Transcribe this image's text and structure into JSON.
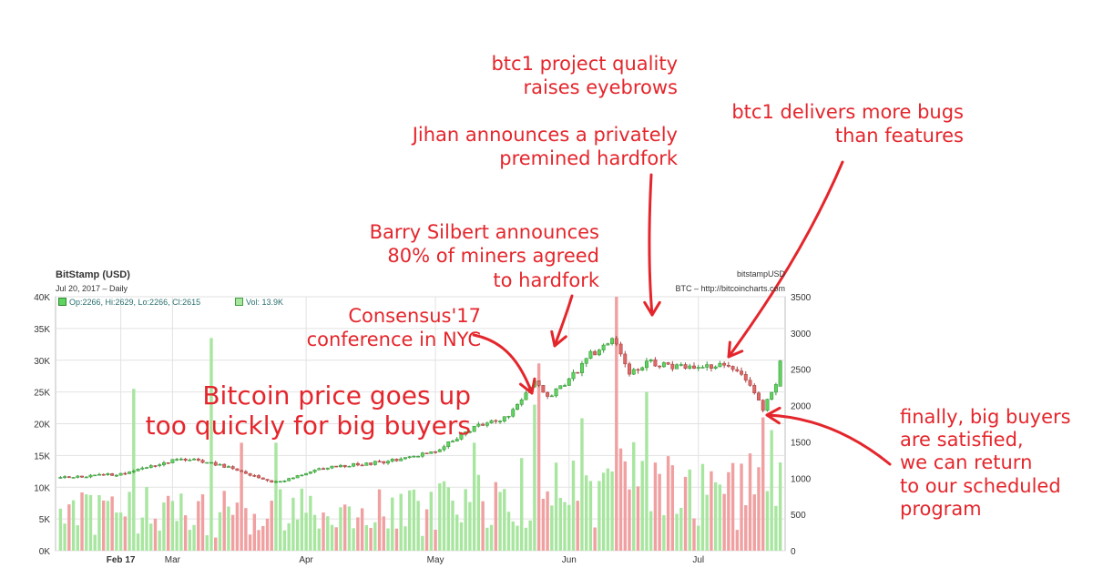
{
  "header": {
    "title": "BitStamp (USD)",
    "subtitle": "Jul 20, 2017 – Daily",
    "right_title": "bitstampUSD",
    "right_subtitle": "BTC – http://bitcoincharts.com",
    "ohlc_legend": "Op:2266, Hi:2629, Lo:2266, Cl:2615",
    "vol_legend": "Vol: 13.9K"
  },
  "annotations": [
    {
      "id": "btc1-quality",
      "lines": [
        "btc1 project quality",
        "raises eyebrows"
      ]
    },
    {
      "id": "jihan",
      "lines": [
        "Jihan announces a privately",
        "premined hardfork"
      ]
    },
    {
      "id": "btc1-bugs",
      "lines": [
        "btc1 delivers more bugs",
        "than features"
      ]
    },
    {
      "id": "barry",
      "lines": [
        "Barry Silbert announces",
        "80% of miners agreed",
        "to hardfork"
      ]
    },
    {
      "id": "consensus",
      "lines": [
        "Consensus'17",
        "conference in NYC"
      ]
    },
    {
      "id": "bitcoin-price",
      "lines": [
        "Bitcoin price goes up",
        "too quickly for big buyers"
      ]
    },
    {
      "id": "finally",
      "lines": [
        "finally, big buyers",
        "are satisfied,",
        "we can return",
        "to our scheduled",
        "program"
      ]
    }
  ],
  "colors": {
    "annotation": "#e4262c",
    "up": "#5fd35f",
    "down": "#e06868",
    "vol_up": "#a8e6a0",
    "vol_down": "#f0a0a0",
    "grid": "#e2e2e2"
  },
  "chart_data": {
    "type": "candlestick",
    "interval": "daily",
    "x_range": [
      "2017-02-03",
      "2017-07-20"
    ],
    "x_tick_labels": [
      {
        "date": "2017-02-17",
        "label": "Feb 17"
      },
      {
        "date": "2017-03-01",
        "label": "Mar"
      },
      {
        "date": "2017-04-01",
        "label": "Apr"
      },
      {
        "date": "2017-05-01",
        "label": "May"
      },
      {
        "date": "2017-06-01",
        "label": "Jun"
      },
      {
        "date": "2017-07-01",
        "label": "Jul"
      }
    ],
    "volume_axis": {
      "side": "left",
      "range": [
        0,
        40000
      ],
      "ticks": [
        0,
        5000,
        10000,
        15000,
        20000,
        25000,
        30000,
        35000,
        40000
      ],
      "tick_labels": [
        "0K",
        "5K",
        "10K",
        "15K",
        "20K",
        "25K",
        "30K",
        "35K",
        "40K"
      ]
    },
    "price_axis": {
      "side": "right",
      "range": [
        0,
        3500
      ],
      "ticks": [
        0,
        500,
        1000,
        1500,
        2000,
        2500,
        3000,
        3500
      ],
      "tick_labels": [
        "0",
        "500",
        "1000",
        "1500",
        "2000",
        "2500",
        "3000",
        "3500"
      ]
    },
    "grid": true,
    "price_close_anchors": [
      {
        "date": "2017-02-03",
        "close": 1010
      },
      {
        "date": "2017-02-17",
        "close": 1060
      },
      {
        "date": "2017-03-03",
        "close": 1270
      },
      {
        "date": "2017-03-10",
        "close": 1210
      },
      {
        "date": "2017-03-17",
        "close": 1090
      },
      {
        "date": "2017-03-25",
        "close": 940
      },
      {
        "date": "2017-04-05",
        "close": 1140
      },
      {
        "date": "2017-04-20",
        "close": 1230
      },
      {
        "date": "2017-05-01",
        "close": 1370
      },
      {
        "date": "2017-05-10",
        "close": 1700
      },
      {
        "date": "2017-05-18",
        "close": 1850
      },
      {
        "date": "2017-05-24",
        "close": 2330
      },
      {
        "date": "2017-05-27",
        "close": 2100
      },
      {
        "date": "2017-06-01",
        "close": 2350
      },
      {
        "date": "2017-06-06",
        "close": 2700
      },
      {
        "date": "2017-06-11",
        "close": 2930
      },
      {
        "date": "2017-06-15",
        "close": 2450
      },
      {
        "date": "2017-06-19",
        "close": 2600
      },
      {
        "date": "2017-06-30",
        "close": 2500
      },
      {
        "date": "2017-07-07",
        "close": 2600
      },
      {
        "date": "2017-07-12",
        "close": 2350
      },
      {
        "date": "2017-07-16",
        "close": 1950
      },
      {
        "date": "2017-07-19",
        "close": 2266
      },
      {
        "date": "2017-07-20",
        "close": 2615
      }
    ],
    "volume_anchors": [
      {
        "date": "2017-02-07",
        "volume": 4000
      },
      {
        "date": "2017-02-17",
        "volume": 6000
      },
      {
        "date": "2017-02-20",
        "volume": 25500
      },
      {
        "date": "2017-03-03",
        "volume": 9000
      },
      {
        "date": "2017-03-10",
        "volume": 33500
      },
      {
        "date": "2017-03-17",
        "volume": 17000
      },
      {
        "date": "2017-03-25",
        "volume": 17000
      },
      {
        "date": "2017-05-10",
        "volume": 17000
      },
      {
        "date": "2017-05-24",
        "volume": 23000
      },
      {
        "date": "2017-05-25",
        "volume": 29500
      },
      {
        "date": "2017-06-12",
        "volume": 31500
      },
      {
        "date": "2017-06-19",
        "volume": 25000
      },
      {
        "date": "2017-07-16",
        "volume": 21000
      },
      {
        "date": "2017-07-18",
        "volume": 19000
      },
      {
        "date": "2017-07-20",
        "volume": 13900
      }
    ],
    "last_candle": {
      "date": "2017-07-20",
      "open": 2266,
      "high": 2629,
      "low": 2266,
      "close": 2615,
      "volume": 13900
    }
  }
}
